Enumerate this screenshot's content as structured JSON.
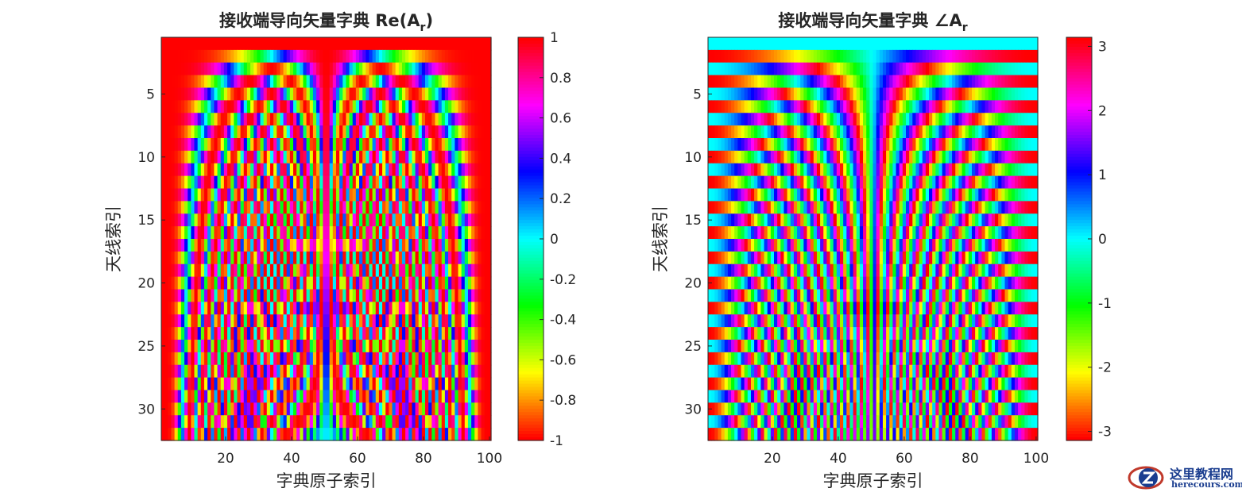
{
  "chart_data": [
    {
      "type": "heatmap",
      "title": "接收端导向矢量字典  Re(A",
      "title_sub": "r",
      "title_end": ")",
      "xlabel": "字典原子索引",
      "ylabel": "天线索引",
      "x_range": [
        1,
        100
      ],
      "y_range": [
        1,
        32
      ],
      "x_ticks": [
        20,
        40,
        60,
        80,
        100
      ],
      "y_ticks": [
        5,
        10,
        15,
        20,
        25,
        30
      ],
      "colorbar": {
        "min": -1,
        "max": 1,
        "ticks": [
          "1",
          "0.8",
          "0.6",
          "0.4",
          "0.2",
          "0",
          "-0.2",
          "-0.4",
          "-0.6",
          "-0.8",
          "-1"
        ],
        "tick_values": [
          1,
          0.8,
          0.6,
          0.4,
          0.2,
          0,
          -0.2,
          -0.4,
          -0.6,
          -0.8,
          -1
        ]
      },
      "colormap": "hsv",
      "value": "cos(pi*(antenna-1)*sin(theta_atom))"
    },
    {
      "type": "heatmap",
      "title": "接收端导向矢量字典  ∠A",
      "title_sub": "r",
      "title_end": "",
      "xlabel": "字典原子索引",
      "ylabel": "天线索引",
      "x_range": [
        1,
        100
      ],
      "y_range": [
        1,
        32
      ],
      "x_ticks": [
        20,
        40,
        60,
        80,
        100
      ],
      "y_ticks": [
        5,
        10,
        15,
        20,
        25,
        30
      ],
      "colorbar": {
        "min": -3.1416,
        "max": 3.1416,
        "ticks": [
          "3",
          "2",
          "1",
          "0",
          "-1",
          "-2",
          "-3"
        ],
        "tick_values": [
          3,
          2,
          1,
          0,
          -1,
          -2,
          -3
        ]
      },
      "colormap": "hsv",
      "value": "angle(exp(j*pi*(antenna-1)*sin(theta_atom)))"
    }
  ],
  "watermark": {
    "line1": "这里教程网",
    "line2": "herecours.com",
    "icon": "z-logo-icon"
  }
}
